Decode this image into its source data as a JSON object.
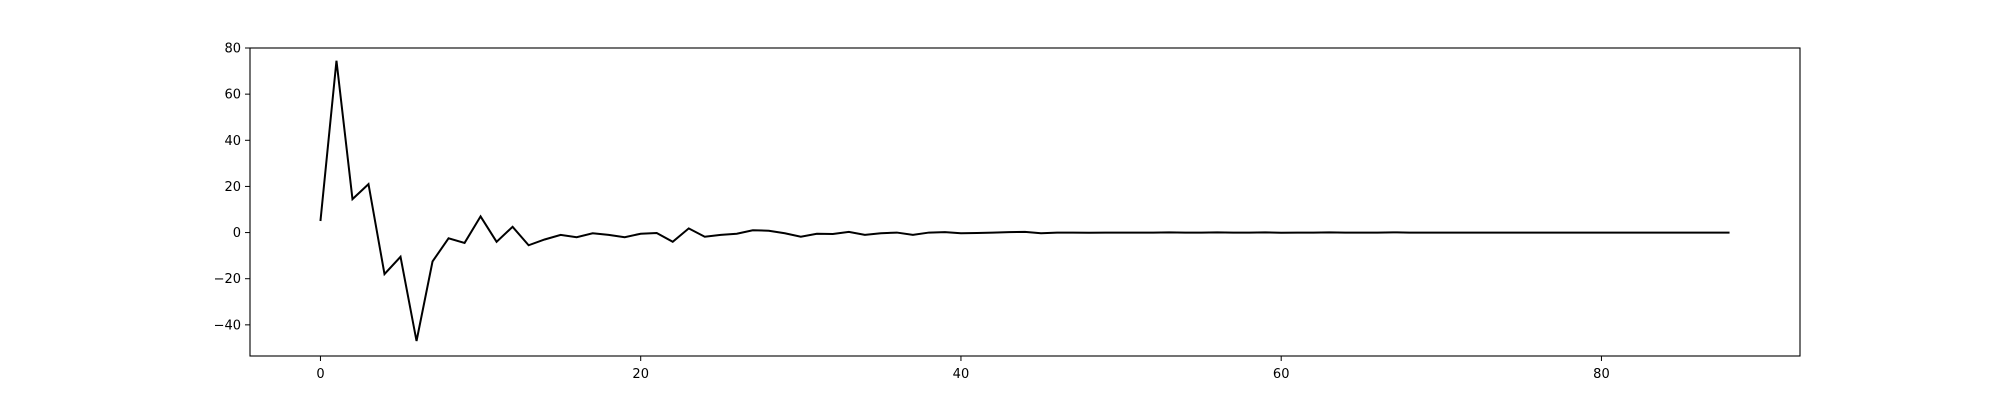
{
  "chart_data": {
    "type": "line",
    "title": "",
    "xlabel": "",
    "ylabel": "",
    "xlim": [
      -4.4,
      92.4
    ],
    "ylim": [
      -53.5,
      80
    ],
    "grid": false,
    "legend": "none",
    "x_ticks": [
      0,
      20,
      40,
      60,
      80
    ],
    "y_ticks": [
      -40,
      -20,
      0,
      20,
      40,
      60,
      80
    ],
    "x_tick_labels": [
      "0",
      "20",
      "40",
      "60",
      "80"
    ],
    "y_tick_labels": [
      "−40",
      "−20",
      "0",
      "20",
      "40",
      "60",
      "80"
    ],
    "series": [
      {
        "color": "#000000",
        "x": [
          0,
          1,
          2,
          3,
          4,
          5,
          6,
          7,
          8,
          9,
          10,
          11,
          12,
          13,
          14,
          15,
          16,
          17,
          18,
          19,
          20,
          21,
          22,
          23,
          24,
          25,
          26,
          27,
          28,
          29,
          30,
          31,
          32,
          33,
          34,
          35,
          36,
          37,
          38,
          39,
          40,
          41,
          42,
          43,
          44,
          45,
          46,
          47,
          48,
          49,
          50,
          51,
          52,
          53,
          54,
          55,
          56,
          57,
          58,
          59,
          60,
          61,
          62,
          63,
          64,
          65,
          66,
          67,
          68,
          69,
          70,
          71,
          72,
          73,
          74,
          75,
          76,
          77,
          78,
          79,
          80,
          81,
          82,
          83,
          84,
          85,
          86,
          87,
          88
        ],
        "y": [
          5,
          74.5,
          14.5,
          21,
          -18,
          -10.5,
          -47,
          -12.5,
          -2.5,
          -4.5,
          7,
          -4,
          2.5,
          -5.5,
          -3,
          -1,
          -2,
          -0.3,
          -1,
          -2,
          -0.5,
          -0.2,
          -4,
          1.8,
          -1.8,
          -1,
          -0.5,
          1,
          0.8,
          -0.3,
          -1.8,
          -0.5,
          -0.6,
          0.3,
          -1,
          -0.3,
          0,
          -1,
          0,
          0.2,
          -0.3,
          -0.2,
          0,
          0.2,
          0.3,
          -0.3,
          0,
          0,
          -0.1,
          0,
          0,
          0,
          0,
          0.1,
          0,
          0,
          0.1,
          0,
          0,
          0.1,
          -0.1,
          0,
          0,
          0.1,
          0,
          0,
          0,
          0.1,
          0,
          0,
          0,
          0,
          0,
          0,
          0,
          0,
          0,
          0,
          0,
          0,
          0,
          0,
          0,
          0,
          0,
          0,
          0,
          0,
          0
        ]
      }
    ]
  }
}
